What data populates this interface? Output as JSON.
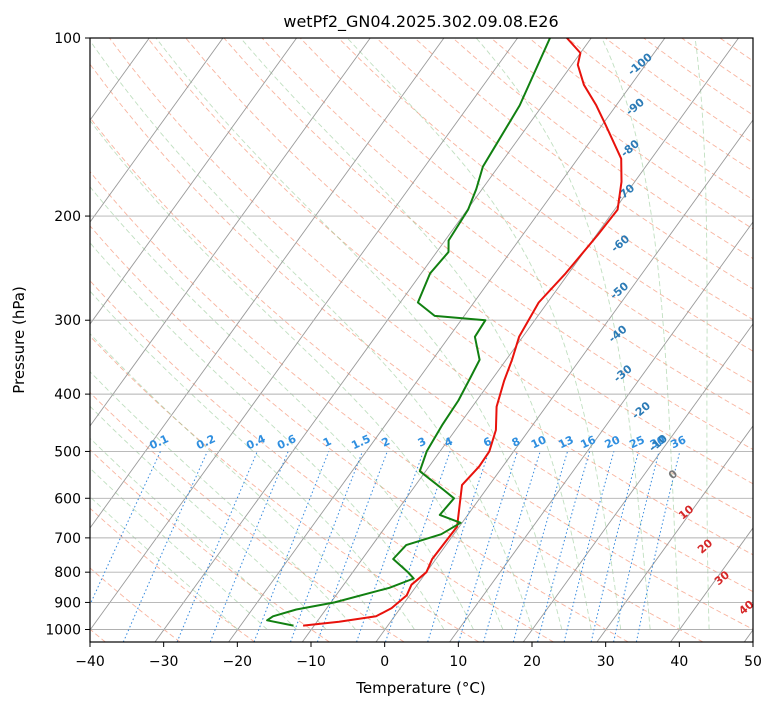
{
  "chart_data": {
    "type": "line",
    "subtype": "skew-t log-p diagram",
    "title": "wetPf2_GN04.2025.302.09.08.E26",
    "xlabel": "Temperature (°C)",
    "ylabel": "Pressure (hPa)",
    "xlim": [
      -40,
      50
    ],
    "ylim": [
      1050,
      100
    ],
    "xticks": [
      -40,
      -30,
      -20,
      -10,
      0,
      10,
      20,
      30,
      40,
      50
    ],
    "yticks": [
      100,
      200,
      300,
      400,
      500,
      600,
      700,
      800,
      900,
      1000
    ],
    "skew_degC_per_log10p": 58,
    "isotherm_step_degC": 10,
    "mixing_ratio_labels": {
      "values": [
        0.1,
        0.2,
        0.4,
        0.6,
        1,
        1.5,
        2,
        3,
        4,
        6,
        8,
        10,
        13,
        16,
        20,
        25,
        30,
        36
      ],
      "pressure_hpa": 500
    },
    "dry_adiabat_labels": [
      {
        "text": "-100",
        "x": -20.7,
        "p": 111
      },
      {
        "text": "-90",
        "x": -17.2,
        "p": 131
      },
      {
        "text": "-80",
        "x": -13.8,
        "p": 154
      },
      {
        "text": "-70",
        "x": -10.1,
        "p": 183
      },
      {
        "text": "-60",
        "x": -5.8,
        "p": 223
      },
      {
        "text": "-50",
        "x": -1.3,
        "p": 268
      },
      {
        "text": "-40",
        "x": 2.7,
        "p": 317
      },
      {
        "text": "-30",
        "x": 7.3,
        "p": 370
      },
      {
        "text": "-20",
        "x": 13.4,
        "p": 427
      },
      {
        "text": "-10",
        "x": 18.9,
        "p": 485
      },
      {
        "text": "0",
        "x": 24.0,
        "p": 548
      }
    ],
    "moist_adiabat_labels": [
      {
        "text": "10",
        "x": 29.5,
        "p": 635
      },
      {
        "text": "20",
        "x": 35.4,
        "p": 725
      },
      {
        "text": "30",
        "x": 40.8,
        "p": 820
      },
      {
        "text": "40",
        "x": 47.0,
        "p": 920
      }
    ],
    "series": [
      {
        "name": "Temperature",
        "color": "#e8120c",
        "x": [
          -11.5,
          -7.0,
          -2.5,
          -1.2,
          -0.4,
          -0.8,
          0.0,
          -0.5,
          -0.3,
          -3.7,
          -3.2,
          -3.3,
          -4.5,
          -6.7,
          -8.2,
          -9.2,
          -10.5,
          -11.2,
          -10.4,
          -9.8,
          -9.6,
          -11.8,
          -14.1,
          -19.6,
          -22.7,
          -26.4,
          -29.2,
          -30.0,
          -33.3
        ],
        "p": [
          985,
          970,
          950,
          920,
          875,
          840,
          800,
          760,
          670,
          570,
          530,
          500,
          460,
          420,
          380,
          350,
          320,
          280,
          250,
          215,
          195,
          175,
          160,
          140,
          130,
          120,
          111,
          106,
          100
        ]
      },
      {
        "name": "Dewpoint",
        "color": "#118011",
        "x": [
          -12.8,
          -16.9,
          -16.5,
          -14.0,
          -9.5,
          -3.5,
          -1.1,
          -2.5,
          -5.8,
          -5.4,
          -1.7,
          -0.2,
          -3.8,
          -3.5,
          -5.8,
          -10.8,
          -11.8,
          -12.3,
          -12.5,
          -13.1,
          -13.6,
          -16.5,
          -16.7,
          -24.0,
          -27.6,
          -28.8,
          -28.4,
          -29.5,
          -29.9,
          -30.8,
          -32.1,
          -32.5,
          -33.1,
          -35.6
        ],
        "p": [
          985,
          965,
          950,
          925,
          900,
          850,
          820,
          800,
          760,
          720,
          690,
          660,
          640,
          600,
          580,
          540,
          500,
          450,
          410,
          375,
          350,
          320,
          300,
          295,
          280,
          250,
          230,
          220,
          195,
          180,
          165,
          150,
          130,
          100
        ]
      }
    ]
  }
}
